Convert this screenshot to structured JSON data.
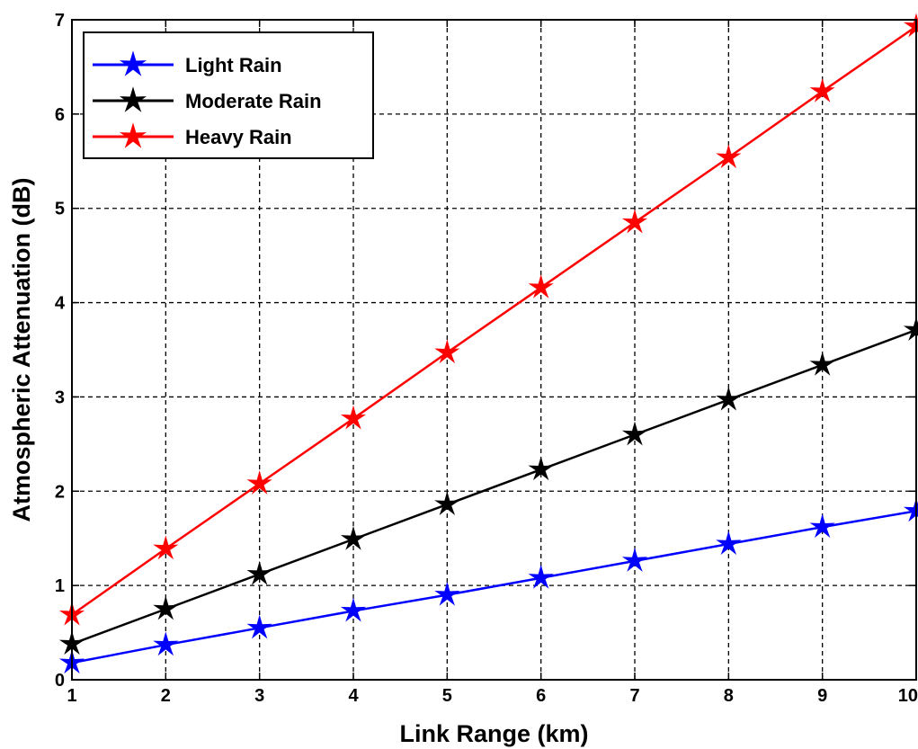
{
  "chart_data": {
    "type": "line",
    "title": "",
    "xlabel": "Link Range (km)",
    "ylabel": "Atmospheric Attenuation (dB)",
    "x": [
      1,
      2,
      3,
      4,
      5,
      6,
      7,
      8,
      9,
      10
    ],
    "xlim": [
      1,
      10
    ],
    "ylim": [
      0,
      7
    ],
    "xticks": [
      "1",
      "2",
      "3",
      "4",
      "5",
      "6",
      "7",
      "8",
      "9",
      "10"
    ],
    "yticks": [
      "0",
      "1",
      "2",
      "3",
      "4",
      "5",
      "6",
      "7"
    ],
    "grid": true,
    "legend_position": "top-left",
    "series": [
      {
        "name": "Light Rain",
        "color": "#0000ff",
        "marker": "star",
        "values": [
          0.18,
          0.37,
          0.55,
          0.73,
          0.9,
          1.08,
          1.26,
          1.44,
          1.62,
          1.79
        ]
      },
      {
        "name": "Moderate Rain",
        "color": "#000000",
        "marker": "star",
        "values": [
          0.38,
          0.75,
          1.12,
          1.49,
          1.86,
          2.23,
          2.6,
          2.97,
          3.34,
          3.71
        ]
      },
      {
        "name": "Heavy Rain",
        "color": "#ff0000",
        "marker": "star",
        "values": [
          0.69,
          1.39,
          2.08,
          2.77,
          3.47,
          4.16,
          4.85,
          5.54,
          6.24,
          6.93
        ]
      }
    ]
  }
}
